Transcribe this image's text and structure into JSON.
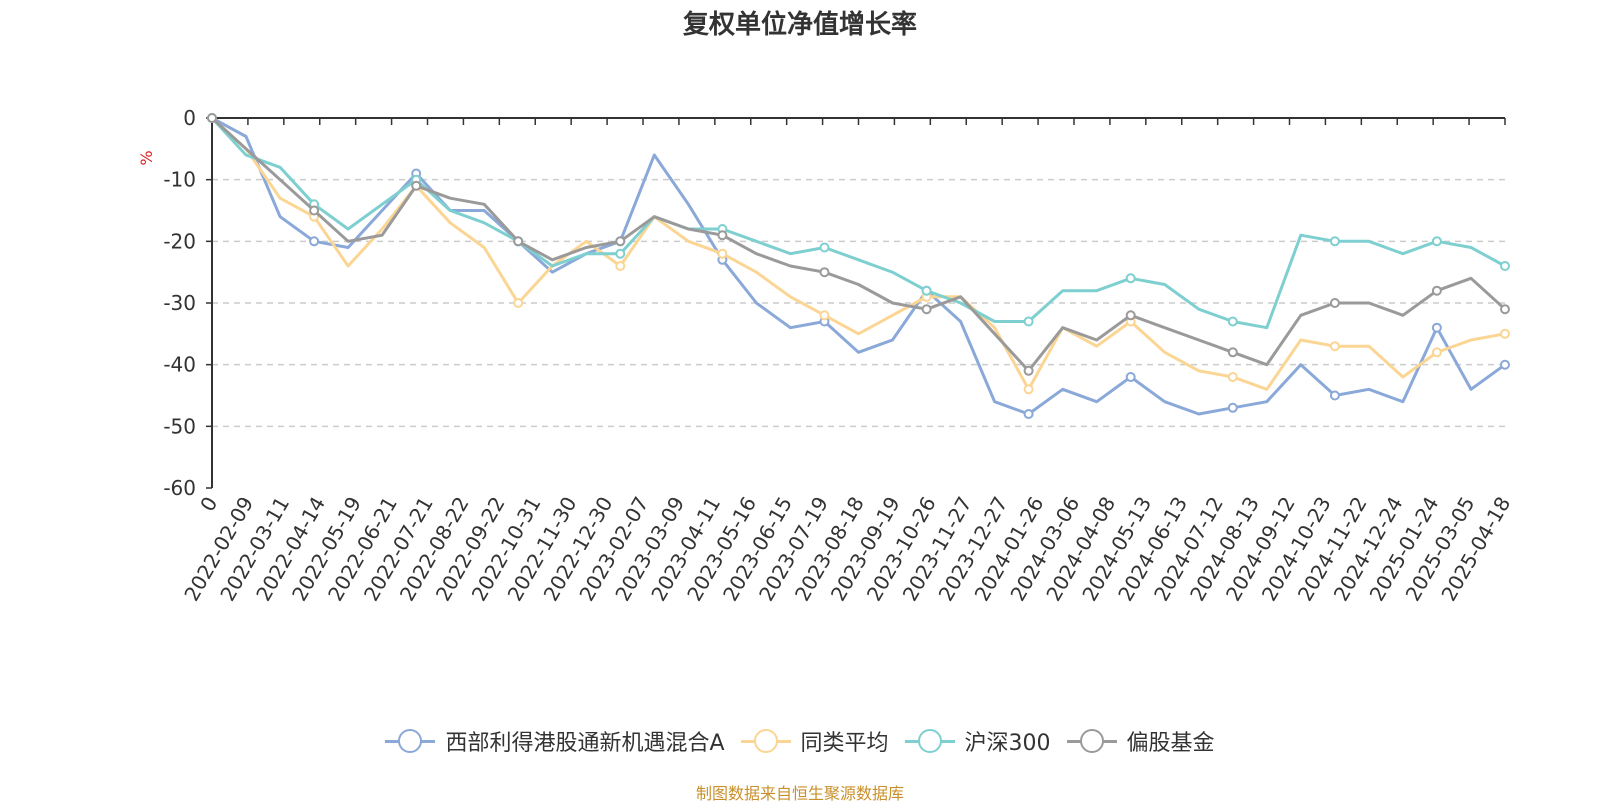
{
  "chart_data": {
    "type": "line",
    "title": "复权单位净值增长率",
    "ylabel": "%",
    "ylim": [
      -60,
      0
    ],
    "yticks": [
      0,
      -10,
      -20,
      -30,
      -40,
      -50,
      -60
    ],
    "x_tick_labels": [
      "0",
      "2022-02-09",
      "2022-03-11",
      "2022-04-14",
      "2022-05-19",
      "2022-06-21",
      "2022-07-21",
      "2022-08-22",
      "2022-09-22",
      "2022-10-31",
      "2022-11-30",
      "2022-12-30",
      "2023-02-07",
      "2023-03-09",
      "2023-04-11",
      "2023-05-16",
      "2023-06-15",
      "2023-07-19",
      "2023-08-18",
      "2023-09-19",
      "2023-10-26",
      "2023-11-27",
      "2023-12-27",
      "2024-01-26",
      "2024-03-06",
      "2024-04-08",
      "2024-05-13",
      "2024-06-13",
      "2024-07-12",
      "2024-08-13",
      "2024-09-12",
      "2024-10-23",
      "2024-11-22",
      "2024-12-24",
      "2025-01-24",
      "2025-03-05",
      "2025-04-18"
    ],
    "grid": "dashed horizontal",
    "legend_position": "bottom",
    "series": [
      {
        "name": "西部利得港股通新机遇混合A",
        "color": "#8aa8d8",
        "values": [
          0,
          -3,
          -16,
          -20,
          -21,
          -15,
          -9,
          -15,
          -15,
          -20,
          -25,
          -22,
          -20,
          -6,
          -14,
          -23,
          -30,
          -34,
          -33,
          -38,
          -36,
          -28,
          -33,
          -46,
          -48,
          -44,
          -46,
          -42,
          -46,
          -48,
          -47,
          -46,
          -40,
          -45,
          -44,
          -46,
          -34,
          -44,
          -40
        ]
      },
      {
        "name": "同类平均",
        "color": "#fbd593",
        "values": [
          0,
          -5,
          -13,
          -16,
          -24,
          -18,
          -11,
          -17,
          -21,
          -30,
          -24,
          -20,
          -24,
          -16,
          -20,
          -22,
          -25,
          -29,
          -32,
          -35,
          -32,
          -29,
          -29,
          -34,
          -44,
          -34,
          -37,
          -33,
          -38,
          -41,
          -42,
          -44,
          -36,
          -37,
          -37,
          -42,
          -38,
          -36,
          -35
        ]
      },
      {
        "name": "沪深300",
        "color": "#7ecfd0",
        "values": [
          0,
          -6,
          -8,
          -14,
          -18,
          -14,
          -10,
          -15,
          -17,
          -20,
          -24,
          -22,
          -22,
          -16,
          -18,
          -18,
          -20,
          -22,
          -21,
          -23,
          -25,
          -28,
          -30,
          -33,
          -33,
          -28,
          -28,
          -26,
          -27,
          -31,
          -33,
          -34,
          -19,
          -20,
          -20,
          -22,
          -20,
          -21,
          -24
        ]
      },
      {
        "name": "偏股基金",
        "color": "#9a9a9a",
        "values": [
          0,
          -5,
          -10,
          -15,
          -20,
          -19,
          -11,
          -13,
          -14,
          -20,
          -23,
          -21,
          -20,
          -16,
          -18,
          -19,
          -22,
          -24,
          -25,
          -27,
          -30,
          -31,
          -29,
          -35,
          -41,
          -34,
          -36,
          -32,
          -34,
          -36,
          -38,
          -40,
          -32,
          -30,
          -30,
          -32,
          -28,
          -26,
          -31
        ]
      }
    ],
    "markers": "hollow circles on each series"
  },
  "footer": "制图数据来自恒生聚源数据库"
}
